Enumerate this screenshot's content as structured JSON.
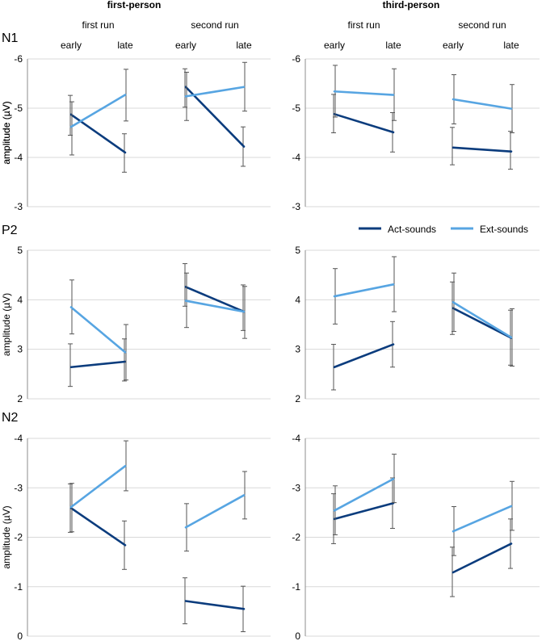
{
  "header": {
    "left": "first-person",
    "right": "third-person",
    "runs": [
      "first run",
      "second run"
    ],
    "phases": [
      "early",
      "late"
    ]
  },
  "legend": {
    "act_label": "Act-sounds",
    "ext_label": "Ext-sounds"
  },
  "colors": {
    "act": "#0b3c7d",
    "ext": "#57a5e2",
    "grid": "#d9d9d9",
    "axis": "#8c8c8c",
    "errorbar": "#555555"
  },
  "chart_data": [
    {
      "type": "line",
      "component": "N1",
      "panel": "first-person",
      "ylabel": "amplitude (µV)",
      "ylim": [
        -6,
        -3
      ],
      "y_inverted": true,
      "yticks": [
        -6,
        -5,
        -4,
        -3
      ],
      "runs": [
        {
          "name": "first run",
          "categories": [
            "early",
            "late"
          ],
          "series": [
            {
              "name": "Act-sounds",
              "values": [
                -4.87,
                -4.1
              ],
              "err_upper": [
                -5.26,
                -4.48
              ],
              "err_lower": [
                -4.45,
                -3.7
              ]
            },
            {
              "name": "Ext-sounds",
              "values": [
                -4.62,
                -5.27
              ],
              "err_upper": [
                -5.13,
                -5.79
              ],
              "err_lower": [
                -4.05,
                -4.74
              ]
            }
          ]
        },
        {
          "name": "second run",
          "categories": [
            "early",
            "late"
          ],
          "series": [
            {
              "name": "Act-sounds",
              "values": [
                -5.43,
                -4.22
              ],
              "err_upper": [
                -5.8,
                -4.62
              ],
              "err_lower": [
                -5.02,
                -3.82
              ]
            },
            {
              "name": "Ext-sounds",
              "values": [
                -5.24,
                -5.43
              ],
              "err_upper": [
                -5.73,
                -5.93
              ],
              "err_lower": [
                -4.75,
                -4.94
              ]
            }
          ]
        }
      ]
    },
    {
      "type": "line",
      "component": "N1",
      "panel": "third-person",
      "ylabel": "amplitude (µV)",
      "ylim": [
        -6,
        -3
      ],
      "y_inverted": true,
      "yticks": [
        -6,
        -5,
        -4,
        -3
      ],
      "runs": [
        {
          "name": "first run",
          "categories": [
            "early",
            "late"
          ],
          "series": [
            {
              "name": "Act-sounds",
              "values": [
                -4.88,
                -4.51
              ],
              "err_upper": [
                -5.28,
                -4.91
              ],
              "err_lower": [
                -4.5,
                -4.11
              ]
            },
            {
              "name": "Ext-sounds",
              "values": [
                -5.34,
                -5.27
              ],
              "err_upper": [
                -5.87,
                -5.8
              ],
              "err_lower": [
                -4.82,
                -4.75
              ]
            }
          ]
        },
        {
          "name": "second run",
          "categories": [
            "early",
            "late"
          ],
          "series": [
            {
              "name": "Act-sounds",
              "values": [
                -4.2,
                -4.12
              ],
              "err_upper": [
                -4.61,
                -4.53
              ],
              "err_lower": [
                -3.85,
                -3.76
              ]
            },
            {
              "name": "Ext-sounds",
              "values": [
                -5.18,
                -4.99
              ],
              "err_upper": [
                -5.68,
                -5.48
              ],
              "err_lower": [
                -4.68,
                -4.5
              ]
            }
          ]
        }
      ]
    },
    {
      "type": "line",
      "component": "P2",
      "panel": "first-person",
      "ylabel": "amplitude (µV)",
      "ylim": [
        2,
        5
      ],
      "y_inverted": false,
      "yticks": [
        2,
        3,
        4,
        5
      ],
      "runs": [
        {
          "name": "first run",
          "categories": [
            "early",
            "late"
          ],
          "series": [
            {
              "name": "Act-sounds",
              "values": [
                2.64,
                2.75
              ],
              "err_upper": [
                3.11,
                3.21
              ],
              "err_lower": [
                2.25,
                2.36
              ]
            },
            {
              "name": "Ext-sounds",
              "values": [
                3.85,
                2.94
              ],
              "err_upper": [
                4.4,
                3.5
              ],
              "err_lower": [
                3.31,
                2.38
              ]
            }
          ]
        },
        {
          "name": "second run",
          "categories": [
            "early",
            "late"
          ],
          "series": [
            {
              "name": "Act-sounds",
              "values": [
                4.26,
                3.76
              ],
              "err_upper": [
                4.73,
                4.3
              ],
              "err_lower": [
                3.87,
                3.38
              ]
            },
            {
              "name": "Ext-sounds",
              "values": [
                3.98,
                3.76
              ],
              "err_upper": [
                4.54,
                4.27
              ],
              "err_lower": [
                3.44,
                3.22
              ]
            }
          ]
        }
      ]
    },
    {
      "type": "line",
      "component": "P2",
      "panel": "third-person",
      "ylabel": "",
      "ylim": [
        2,
        5
      ],
      "y_inverted": false,
      "yticks": [
        2,
        3,
        4,
        5
      ],
      "runs": [
        {
          "name": "first run",
          "categories": [
            "early",
            "late"
          ],
          "series": [
            {
              "name": "Act-sounds",
              "values": [
                2.64,
                3.1
              ],
              "err_upper": [
                3.1,
                3.56
              ],
              "err_lower": [
                2.18,
                2.64
              ]
            },
            {
              "name": "Ext-sounds",
              "values": [
                4.07,
                4.31
              ],
              "err_upper": [
                4.63,
                4.87
              ],
              "err_lower": [
                3.51,
                3.76
              ]
            }
          ]
        },
        {
          "name": "second run",
          "categories": [
            "early",
            "late"
          ],
          "series": [
            {
              "name": "Act-sounds",
              "values": [
                3.83,
                3.23
              ],
              "err_upper": [
                4.36,
                3.79
              ],
              "err_lower": [
                3.3,
                2.68
              ]
            },
            {
              "name": "Ext-sounds",
              "values": [
                3.95,
                3.24
              ],
              "err_upper": [
                4.54,
                3.82
              ],
              "err_lower": [
                3.36,
                2.66
              ]
            }
          ]
        }
      ]
    },
    {
      "type": "line",
      "component": "N2",
      "panel": "first-person",
      "ylabel": "amplitude (µV)",
      "ylim": [
        -4,
        0
      ],
      "y_inverted": true,
      "yticks": [
        -4,
        -3,
        -2,
        -1,
        0
      ],
      "runs": [
        {
          "name": "first run",
          "categories": [
            "early",
            "late"
          ],
          "series": [
            {
              "name": "Act-sounds",
              "values": [
                -2.59,
                -1.84
              ],
              "err_upper": [
                -3.08,
                -2.33
              ],
              "err_lower": [
                -2.1,
                -1.35
              ]
            },
            {
              "name": "Ext-sounds",
              "values": [
                -2.61,
                -3.44
              ],
              "err_upper": [
                -3.09,
                -3.95
              ],
              "err_lower": [
                -2.11,
                -2.94
              ]
            }
          ]
        },
        {
          "name": "second run",
          "categories": [
            "early",
            "late"
          ],
          "series": [
            {
              "name": "Act-sounds",
              "values": [
                -0.71,
                -0.55
              ],
              "err_upper": [
                -1.18,
                -1.01
              ],
              "err_lower": [
                -0.25,
                -0.09
              ]
            },
            {
              "name": "Ext-sounds",
              "values": [
                -2.2,
                -2.85
              ],
              "err_upper": [
                -2.68,
                -3.33
              ],
              "err_lower": [
                -1.72,
                -2.37
              ]
            }
          ]
        }
      ]
    },
    {
      "type": "line",
      "component": "N2",
      "panel": "third-person",
      "ylabel": "",
      "ylim": [
        -4,
        0
      ],
      "y_inverted": true,
      "yticks": [
        -4,
        -3,
        -2,
        -1,
        0
      ],
      "runs": [
        {
          "name": "first run",
          "categories": [
            "early",
            "late"
          ],
          "series": [
            {
              "name": "Act-sounds",
              "values": [
                -2.37,
                -2.69
              ],
              "err_upper": [
                -2.88,
                -3.2
              ],
              "err_lower": [
                -1.87,
                -2.18
              ]
            },
            {
              "name": "Ext-sounds",
              "values": [
                -2.54,
                -3.18
              ],
              "err_upper": [
                -3.04,
                -3.68
              ],
              "err_lower": [
                -2.05,
                -2.7
              ]
            }
          ]
        },
        {
          "name": "second run",
          "categories": [
            "early",
            "late"
          ],
          "series": [
            {
              "name": "Act-sounds",
              "values": [
                -1.29,
                -1.87
              ],
              "err_upper": [
                -1.8,
                -2.37
              ],
              "err_lower": [
                -0.8,
                -1.37
              ]
            },
            {
              "name": "Ext-sounds",
              "values": [
                -2.12,
                -2.63
              ],
              "err_upper": [
                -2.62,
                -3.13
              ],
              "err_lower": [
                -1.63,
                -2.14
              ]
            }
          ]
        }
      ]
    }
  ]
}
